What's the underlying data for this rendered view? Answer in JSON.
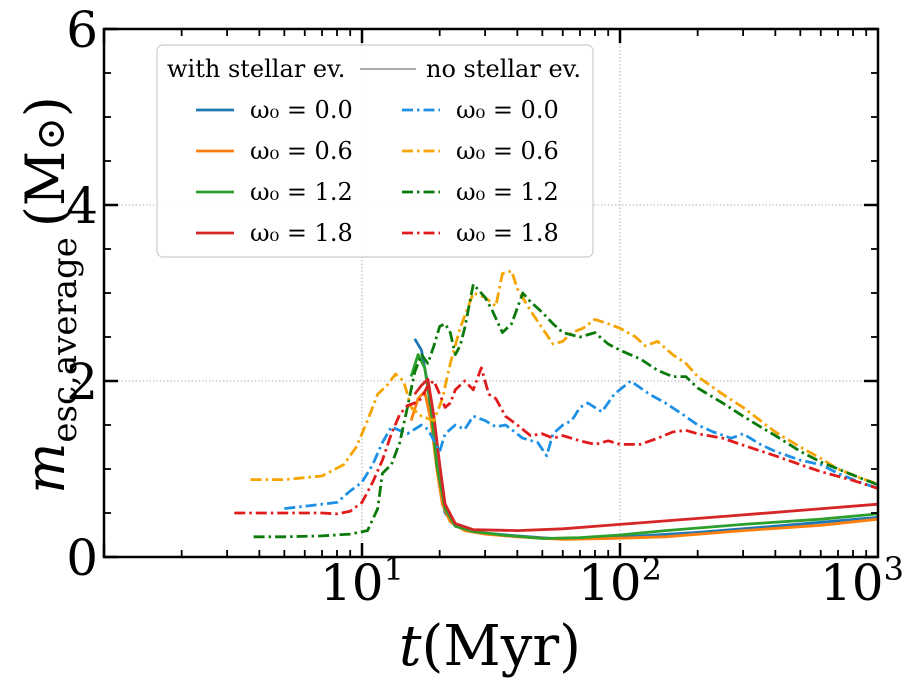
{
  "chart_data": {
    "type": "line",
    "xscale": "log",
    "xlim": [
      1,
      1000
    ],
    "ylim": [
      0,
      6
    ],
    "xlabel": {
      "var": "t",
      "unit": "(Myr)"
    },
    "ylabel": {
      "var": "m",
      "sub": "esc,average",
      "unit": "(M",
      "unit_sym": "⊙",
      "unit_close": ")"
    },
    "xticks": [
      {
        "value": 10,
        "base": "10",
        "exp": "1"
      },
      {
        "value": 100,
        "base": "10",
        "exp": "2"
      },
      {
        "value": 1000,
        "base": "10",
        "exp": "3"
      }
    ],
    "yticks": [
      {
        "value": 0,
        "label": "0"
      },
      {
        "value": 2,
        "label": "2"
      },
      {
        "value": 4,
        "label": "4"
      },
      {
        "value": 6,
        "label": "6"
      }
    ],
    "grid": true,
    "legend": {
      "placement": "upper-left",
      "col1_title": "with stellar ev.",
      "col2_title": "no stellar ev.",
      "entries": [
        {
          "label": "ω₀ = 0.0",
          "series": 0
        },
        {
          "label": "ω₀ = 0.6",
          "series": 1
        },
        {
          "label": "ω₀ = 1.2",
          "series": 2
        },
        {
          "label": "ω₀ = 1.8",
          "series": 3
        },
        {
          "label": "ω₀ = 0.0",
          "series": 4
        },
        {
          "label": "ω₀ = 0.6",
          "series": 5
        },
        {
          "label": "ω₀ = 1.2",
          "series": 6
        },
        {
          "label": "ω₀ = 1.8",
          "series": 7
        }
      ]
    },
    "series": [
      {
        "name": "with stellar ev. ω0 = 0.0",
        "style": "solid",
        "color": "#1f77b4",
        "points": [
          [
            16,
            2.48
          ],
          [
            17,
            2.35
          ],
          [
            18,
            1.95
          ],
          [
            19,
            1.3
          ],
          [
            20,
            0.8
          ],
          [
            21,
            0.5
          ],
          [
            23,
            0.35
          ],
          [
            26,
            0.3
          ],
          [
            30,
            0.27
          ],
          [
            40,
            0.24
          ],
          [
            55,
            0.21
          ],
          [
            80,
            0.22
          ],
          [
            120,
            0.24
          ],
          [
            200,
            0.28
          ],
          [
            400,
            0.35
          ],
          [
            1000,
            0.45
          ]
        ]
      },
      {
        "name": "with stellar ev. ω0 = 0.6",
        "style": "solid",
        "color": "#ff7f0e",
        "points": [
          [
            15.5,
            1.55
          ],
          [
            16.5,
            1.8
          ],
          [
            17.5,
            1.88
          ],
          [
            18.5,
            1.55
          ],
          [
            19.5,
            1.0
          ],
          [
            20.5,
            0.6
          ],
          [
            22,
            0.4
          ],
          [
            25,
            0.3
          ],
          [
            30,
            0.26
          ],
          [
            40,
            0.23
          ],
          [
            60,
            0.2
          ],
          [
            90,
            0.21
          ],
          [
            150,
            0.23
          ],
          [
            300,
            0.3
          ],
          [
            600,
            0.36
          ],
          [
            1000,
            0.43
          ]
        ]
      },
      {
        "name": "with stellar ev. ω0 = 1.2",
        "style": "solid",
        "color": "#2ca02c",
        "points": [
          [
            15.5,
            2.05
          ],
          [
            16.5,
            2.3
          ],
          [
            17.5,
            2.15
          ],
          [
            18.5,
            1.7
          ],
          [
            19.5,
            1.05
          ],
          [
            21,
            0.55
          ],
          [
            23,
            0.35
          ],
          [
            27,
            0.29
          ],
          [
            35,
            0.25
          ],
          [
            50,
            0.21
          ],
          [
            70,
            0.22
          ],
          [
            100,
            0.25
          ],
          [
            150,
            0.3
          ],
          [
            300,
            0.37
          ],
          [
            600,
            0.43
          ],
          [
            1000,
            0.49
          ]
        ]
      },
      {
        "name": "with stellar ev. ω0 = 1.8",
        "style": "solid",
        "color": "#d62728",
        "points": [
          [
            16,
            1.85
          ],
          [
            17,
            1.95
          ],
          [
            18,
            2.02
          ],
          [
            19,
            1.6
          ],
          [
            20,
            1.05
          ],
          [
            21,
            0.6
          ],
          [
            23,
            0.38
          ],
          [
            27,
            0.31
          ],
          [
            40,
            0.3
          ],
          [
            60,
            0.32
          ],
          [
            100,
            0.37
          ],
          [
            150,
            0.41
          ],
          [
            250,
            0.46
          ],
          [
            500,
            0.53
          ],
          [
            1000,
            0.6
          ]
        ]
      },
      {
        "name": "no stellar ev. ω0 = 0.0",
        "style": "dashdot",
        "color": "#1e90e6",
        "points": [
          [
            5,
            0.55
          ],
          [
            7,
            0.6
          ],
          [
            8,
            0.62
          ],
          [
            9,
            0.75
          ],
          [
            10,
            0.85
          ],
          [
            11,
            1.05
          ],
          [
            12,
            1.3
          ],
          [
            13,
            1.48
          ],
          [
            15,
            1.4
          ],
          [
            17,
            1.5
          ],
          [
            18,
            1.45
          ],
          [
            20,
            1.2
          ],
          [
            21,
            1.4
          ],
          [
            23,
            1.5
          ],
          [
            25,
            1.45
          ],
          [
            27,
            1.6
          ],
          [
            30,
            1.55
          ],
          [
            33,
            1.48
          ],
          [
            36,
            1.5
          ],
          [
            42,
            1.35
          ],
          [
            48,
            1.3
          ],
          [
            52,
            1.15
          ],
          [
            55,
            1.4
          ],
          [
            60,
            1.5
          ],
          [
            65,
            1.55
          ],
          [
            70,
            1.7
          ],
          [
            75,
            1.75
          ],
          [
            85,
            1.65
          ],
          [
            95,
            1.85
          ],
          [
            110,
            2.0
          ],
          [
            130,
            1.85
          ],
          [
            150,
            1.75
          ],
          [
            175,
            1.62
          ],
          [
            200,
            1.5
          ],
          [
            230,
            1.42
          ],
          [
            270,
            1.35
          ],
          [
            300,
            1.4
          ],
          [
            350,
            1.28
          ],
          [
            400,
            1.2
          ],
          [
            500,
            1.1
          ],
          [
            600,
            1.05
          ],
          [
            700,
            0.95
          ],
          [
            850,
            0.85
          ],
          [
            1000,
            0.78
          ]
        ]
      },
      {
        "name": "no stellar ev. ω0 = 0.6",
        "style": "dashdot",
        "color": "#f5a400",
        "points": [
          [
            3.7,
            0.88
          ],
          [
            5,
            0.88
          ],
          [
            7,
            0.92
          ],
          [
            8.5,
            1.05
          ],
          [
            9.5,
            1.25
          ],
          [
            10.5,
            1.55
          ],
          [
            11.5,
            1.85
          ],
          [
            12.5,
            1.95
          ],
          [
            13.5,
            2.08
          ],
          [
            14.5,
            2.0
          ],
          [
            15.5,
            1.7
          ],
          [
            17,
            1.6
          ],
          [
            19,
            1.55
          ],
          [
            20.5,
            1.8
          ],
          [
            22,
            2.2
          ],
          [
            24,
            2.6
          ],
          [
            27,
            3.0
          ],
          [
            30,
            2.95
          ],
          [
            33,
            2.85
          ],
          [
            35,
            3.22
          ],
          [
            38,
            3.25
          ],
          [
            40,
            3.05
          ],
          [
            45,
            2.8
          ],
          [
            50,
            2.6
          ],
          [
            55,
            2.42
          ],
          [
            60,
            2.45
          ],
          [
            65,
            2.55
          ],
          [
            72,
            2.6
          ],
          [
            80,
            2.7
          ],
          [
            90,
            2.65
          ],
          [
            100,
            2.6
          ],
          [
            115,
            2.5
          ],
          [
            125,
            2.4
          ],
          [
            140,
            2.45
          ],
          [
            160,
            2.3
          ],
          [
            180,
            2.2
          ],
          [
            200,
            2.05
          ],
          [
            250,
            1.85
          ],
          [
            300,
            1.7
          ],
          [
            400,
            1.42
          ],
          [
            500,
            1.25
          ],
          [
            600,
            1.12
          ],
          [
            700,
            1.0
          ],
          [
            850,
            0.9
          ],
          [
            1000,
            0.83
          ]
        ]
      },
      {
        "name": "no stellar ev. ω0 = 1.2",
        "style": "dashdot",
        "color": "#0a7a0a",
        "points": [
          [
            3.8,
            0.23
          ],
          [
            5,
            0.23
          ],
          [
            7,
            0.24
          ],
          [
            9,
            0.26
          ],
          [
            10.5,
            0.3
          ],
          [
            11.5,
            0.55
          ],
          [
            12,
            0.95
          ],
          [
            13,
            1.05
          ],
          [
            14,
            1.3
          ],
          [
            15,
            1.7
          ],
          [
            16,
            2.1
          ],
          [
            17,
            2.3
          ],
          [
            18,
            2.2
          ],
          [
            19,
            2.4
          ],
          [
            20,
            2.62
          ],
          [
            21,
            2.65
          ],
          [
            22,
            2.55
          ],
          [
            23,
            2.3
          ],
          [
            24,
            2.4
          ],
          [
            25,
            2.6
          ],
          [
            27,
            3.1
          ],
          [
            30,
            2.95
          ],
          [
            32,
            2.8
          ],
          [
            35,
            2.55
          ],
          [
            38,
            2.65
          ],
          [
            42,
            3.0
          ],
          [
            45,
            2.9
          ],
          [
            50,
            2.78
          ],
          [
            55,
            2.65
          ],
          [
            60,
            2.55
          ],
          [
            70,
            2.5
          ],
          [
            80,
            2.55
          ],
          [
            90,
            2.42
          ],
          [
            100,
            2.35
          ],
          [
            120,
            2.25
          ],
          [
            140,
            2.12
          ],
          [
            160,
            2.05
          ],
          [
            180,
            2.05
          ],
          [
            200,
            1.92
          ],
          [
            250,
            1.75
          ],
          [
            300,
            1.6
          ],
          [
            350,
            1.48
          ],
          [
            400,
            1.38
          ],
          [
            500,
            1.2
          ],
          [
            600,
            1.08
          ],
          [
            700,
            1.0
          ],
          [
            850,
            0.9
          ],
          [
            1000,
            0.82
          ]
        ]
      },
      {
        "name": "no stellar ev. ω0 = 1.8",
        "style": "dashdot",
        "color": "#e01b1b",
        "points": [
          [
            3.2,
            0.5
          ],
          [
            5,
            0.5
          ],
          [
            7,
            0.5
          ],
          [
            8,
            0.49
          ],
          [
            9,
            0.52
          ],
          [
            10,
            0.62
          ],
          [
            11,
            0.85
          ],
          [
            12,
            1.1
          ],
          [
            13,
            1.4
          ],
          [
            14,
            1.62
          ],
          [
            15,
            1.72
          ],
          [
            16,
            1.75
          ],
          [
            17,
            1.8
          ],
          [
            18,
            1.95
          ],
          [
            19,
            2.0
          ],
          [
            20,
            1.85
          ],
          [
            21,
            1.7
          ],
          [
            22,
            1.75
          ],
          [
            23,
            1.9
          ],
          [
            25,
            2.0
          ],
          [
            27,
            1.9
          ],
          [
            29,
            2.15
          ],
          [
            31,
            1.85
          ],
          [
            33,
            1.8
          ],
          [
            36,
            1.6
          ],
          [
            40,
            1.5
          ],
          [
            45,
            1.38
          ],
          [
            50,
            1.4
          ],
          [
            55,
            1.35
          ],
          [
            60,
            1.38
          ],
          [
            70,
            1.32
          ],
          [
            80,
            1.28
          ],
          [
            90,
            1.32
          ],
          [
            100,
            1.28
          ],
          [
            120,
            1.28
          ],
          [
            140,
            1.35
          ],
          [
            160,
            1.42
          ],
          [
            180,
            1.44
          ],
          [
            200,
            1.4
          ],
          [
            250,
            1.35
          ],
          [
            300,
            1.27
          ],
          [
            400,
            1.15
          ],
          [
            500,
            1.05
          ],
          [
            600,
            0.97
          ],
          [
            800,
            0.87
          ],
          [
            1000,
            0.78
          ]
        ]
      }
    ]
  }
}
